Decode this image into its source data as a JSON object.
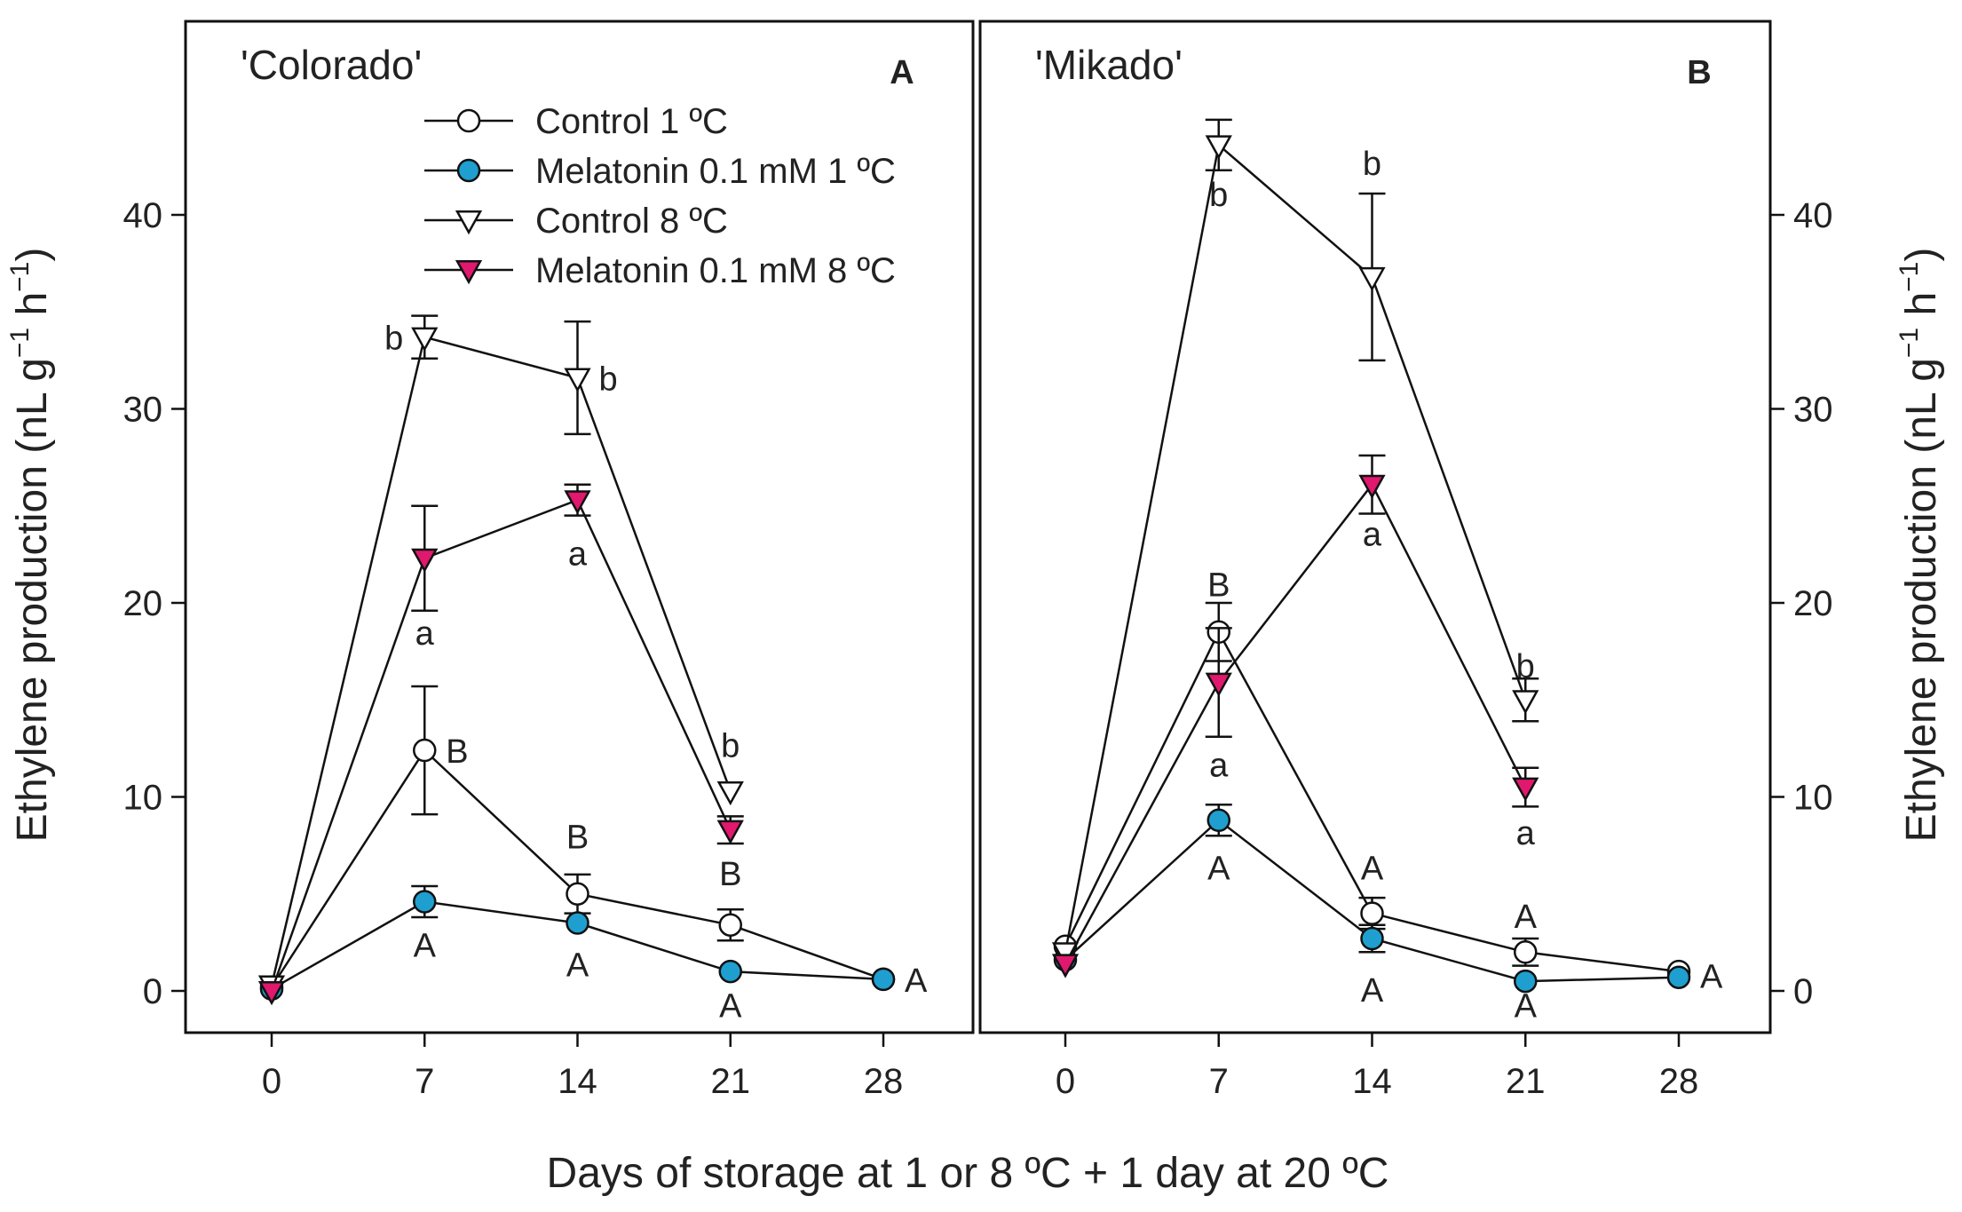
{
  "chart_data": {
    "type": "line",
    "shared_xlabel": "Days of storage at 1 or 8 ºC + 1 day at 20 ºC",
    "ylabel_main": "Ethylene production (nL g",
    "ylabel_sup1": "−1",
    "ylabel_mid": " h",
    "ylabel_sup2": "−1",
    "ylabel_end": ")",
    "x_ticks": [
      0,
      7,
      14,
      21,
      28
    ],
    "y_ticks": [
      0,
      10,
      20,
      30,
      40
    ],
    "xlim": [
      -4,
      33
    ],
    "ylim": [
      -2,
      50
    ],
    "series_style": [
      {
        "name": "Control 1 ºC",
        "marker": "circle",
        "fill": "#ffffff"
      },
      {
        "name": "Melatonin 0.1 mM 1 ºC",
        "marker": "circle",
        "fill": "#1e9fd0"
      },
      {
        "name": "Control 8 ºC",
        "marker": "triangle-down",
        "fill": "#ffffff"
      },
      {
        "name": "Melatonin 0.1 mM 8 ºC",
        "marker": "triangle-down",
        "fill": "#e0186e"
      }
    ],
    "panels": [
      {
        "title": "'Colorado'",
        "letter": "A",
        "y_axis_side": "left",
        "legend": true,
        "series": [
          {
            "name": "Control 1 ºC",
            "x": [
              0,
              7,
              14,
              21,
              28
            ],
            "y": [
              0.2,
              12.4,
              5.0,
              3.4,
              0.6
            ],
            "err": [
              0,
              3.3,
              1.0,
              0.8,
              0
            ]
          },
          {
            "name": "Melatonin 0.1 mM 1 ºC",
            "x": [
              0,
              7,
              14,
              21,
              28
            ],
            "y": [
              0.1,
              4.6,
              3.5,
              1.0,
              0.6
            ],
            "err": [
              0,
              0.8,
              0,
              0,
              0
            ]
          },
          {
            "name": "Control 8 ºC",
            "x": [
              0,
              7,
              14,
              21
            ],
            "y": [
              0.3,
              33.7,
              31.6,
              10.3
            ],
            "err": [
              0,
              1.1,
              2.9,
              0
            ]
          },
          {
            "name": "Melatonin 0.1 mM 8 ºC",
            "x": [
              0,
              7,
              14,
              21
            ],
            "y": [
              0.0,
              22.3,
              25.3,
              8.3
            ],
            "err": [
              0,
              2.7,
              0.8,
              0.7
            ]
          }
        ],
        "annotations": [
          {
            "text": "b",
            "x": 7,
            "y": 33.7,
            "pos": "left"
          },
          {
            "text": "b",
            "x": 14,
            "y": 31.6,
            "pos": "right"
          },
          {
            "text": "a",
            "x": 7,
            "y": 22.3,
            "pos": "below",
            "dy": 3.9
          },
          {
            "text": "a",
            "x": 14,
            "y": 25.3,
            "pos": "below",
            "dy": 2.8
          },
          {
            "text": "b",
            "x": 21,
            "y": 10.3,
            "pos": "above",
            "dy": 2.3
          },
          {
            "text": "B",
            "x": 7,
            "y": 12.4,
            "pos": "right"
          },
          {
            "text": "B",
            "x": 14,
            "y": 5.0,
            "pos": "above",
            "dy": 2.9
          },
          {
            "text": "B",
            "x": 21,
            "y": 3.4,
            "pos": "above",
            "dy": 2.6
          },
          {
            "text": "A",
            "x": 7,
            "y": 4.6,
            "pos": "below",
            "dy": 2.3
          },
          {
            "text": "A",
            "x": 14,
            "y": 3.5,
            "pos": "below",
            "dy": 2.2
          },
          {
            "text": "A",
            "x": 21,
            "y": 1.0,
            "pos": "below",
            "dy": 1.8
          },
          {
            "text": "A",
            "x": 28,
            "y": 0.6,
            "pos": "right"
          }
        ]
      },
      {
        "title": "'Mikado'",
        "letter": "B",
        "y_axis_side": "right",
        "legend": false,
        "series": [
          {
            "name": "Control 1 ºC",
            "x": [
              0,
              7,
              14,
              21,
              28
            ],
            "y": [
              2.3,
              18.5,
              4.0,
              2.0,
              1.0
            ],
            "err": [
              0,
              1.5,
              0.8,
              0.7,
              0
            ]
          },
          {
            "name": "Melatonin 0.1 mM 1 ºC",
            "x": [
              0,
              7,
              14,
              21,
              28
            ],
            "y": [
              1.6,
              8.8,
              2.7,
              0.5,
              0.7
            ],
            "err": [
              0,
              0.8,
              0.7,
              0,
              0
            ]
          },
          {
            "name": "Control 8 ºC",
            "x": [
              0,
              7,
              14,
              21
            ],
            "y": [
              2.0,
              43.6,
              36.8,
              15.0
            ],
            "err": [
              0,
              1.3,
              4.3,
              1.1
            ]
          },
          {
            "name": "Melatonin 0.1 mM 8 ºC",
            "x": [
              0,
              7,
              14,
              21
            ],
            "y": [
              1.4,
              15.9,
              26.1,
              10.5
            ],
            "err": [
              0,
              2.8,
              1.5,
              1.0
            ]
          }
        ],
        "annotations": [
          {
            "text": "b",
            "x": 7,
            "y": 43.6,
            "pos": "below",
            "dy": 2.6
          },
          {
            "text": "b",
            "x": 14,
            "y": 36.8,
            "pos": "above",
            "dy": 5.8
          },
          {
            "text": "b",
            "x": 21,
            "y": 15.0,
            "pos": "above",
            "dy": 1.7
          },
          {
            "text": "a",
            "x": 14,
            "y": 26.1,
            "pos": "below",
            "dy": 2.6
          },
          {
            "text": "a",
            "x": 7,
            "y": 15.9,
            "pos": "below",
            "dy": 4.3
          },
          {
            "text": "a",
            "x": 21,
            "y": 10.5,
            "pos": "below",
            "dy": 2.4
          },
          {
            "text": "B",
            "x": 7,
            "y": 18.5,
            "pos": "above",
            "dy": 2.4
          },
          {
            "text": "A",
            "x": 7,
            "y": 8.8,
            "pos": "below",
            "dy": 2.5
          },
          {
            "text": "A",
            "x": 14,
            "y": 4.0,
            "pos": "above",
            "dy": 2.3
          },
          {
            "text": "A",
            "x": 14,
            "y": 2.7,
            "pos": "below",
            "dy": 2.7
          },
          {
            "text": "A",
            "x": 21,
            "y": 2.0,
            "pos": "above",
            "dy": 1.8
          },
          {
            "text": "A",
            "x": 21,
            "y": 0.5,
            "pos": "below",
            "dy": 1.3
          },
          {
            "text": "A",
            "x": 28,
            "y": 0.8,
            "pos": "right"
          }
        ]
      }
    ]
  }
}
